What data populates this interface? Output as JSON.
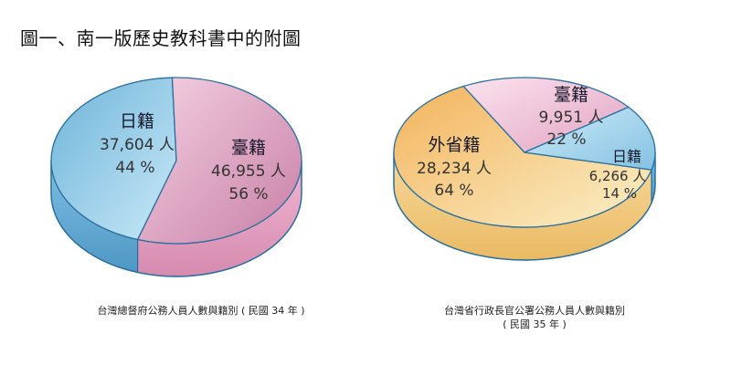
{
  "page_title": "圖一、南一版歷史教科書中的附圖",
  "chart_data": [
    {
      "type": "pie",
      "caption": "台灣總督府公務人員人數與籍別 ( 民國 34 年 )",
      "slices": [
        {
          "name": "日籍",
          "value": 37604,
          "value_label": "37,604 人",
          "percent": 44,
          "percent_label": "44 %",
          "color": "#8ccbe8"
        },
        {
          "name": "臺籍",
          "value": 46955,
          "value_label": "46,955 人",
          "percent": 56,
          "percent_label": "56 %",
          "color": "#e6aac6"
        }
      ]
    },
    {
      "type": "pie",
      "caption_lines": [
        "台灣省行政長官公署公務人員人數與籍別",
        "( 民國 35 年 )"
      ],
      "slices": [
        {
          "name": "外省籍",
          "value": 28234,
          "value_label": "28,234 人",
          "percent": 64,
          "percent_label": "64 %",
          "color": "#f5d08e"
        },
        {
          "name": "臺籍",
          "value": 9951,
          "value_label": "9,951 人",
          "percent": 22,
          "percent_label": "22 %",
          "color": "#f2c6d8"
        },
        {
          "name": "日籍",
          "value": 6266,
          "value_label": "6,266 人",
          "percent": 14,
          "percent_label": "14 %",
          "color": "#a9d8ef"
        }
      ]
    }
  ]
}
